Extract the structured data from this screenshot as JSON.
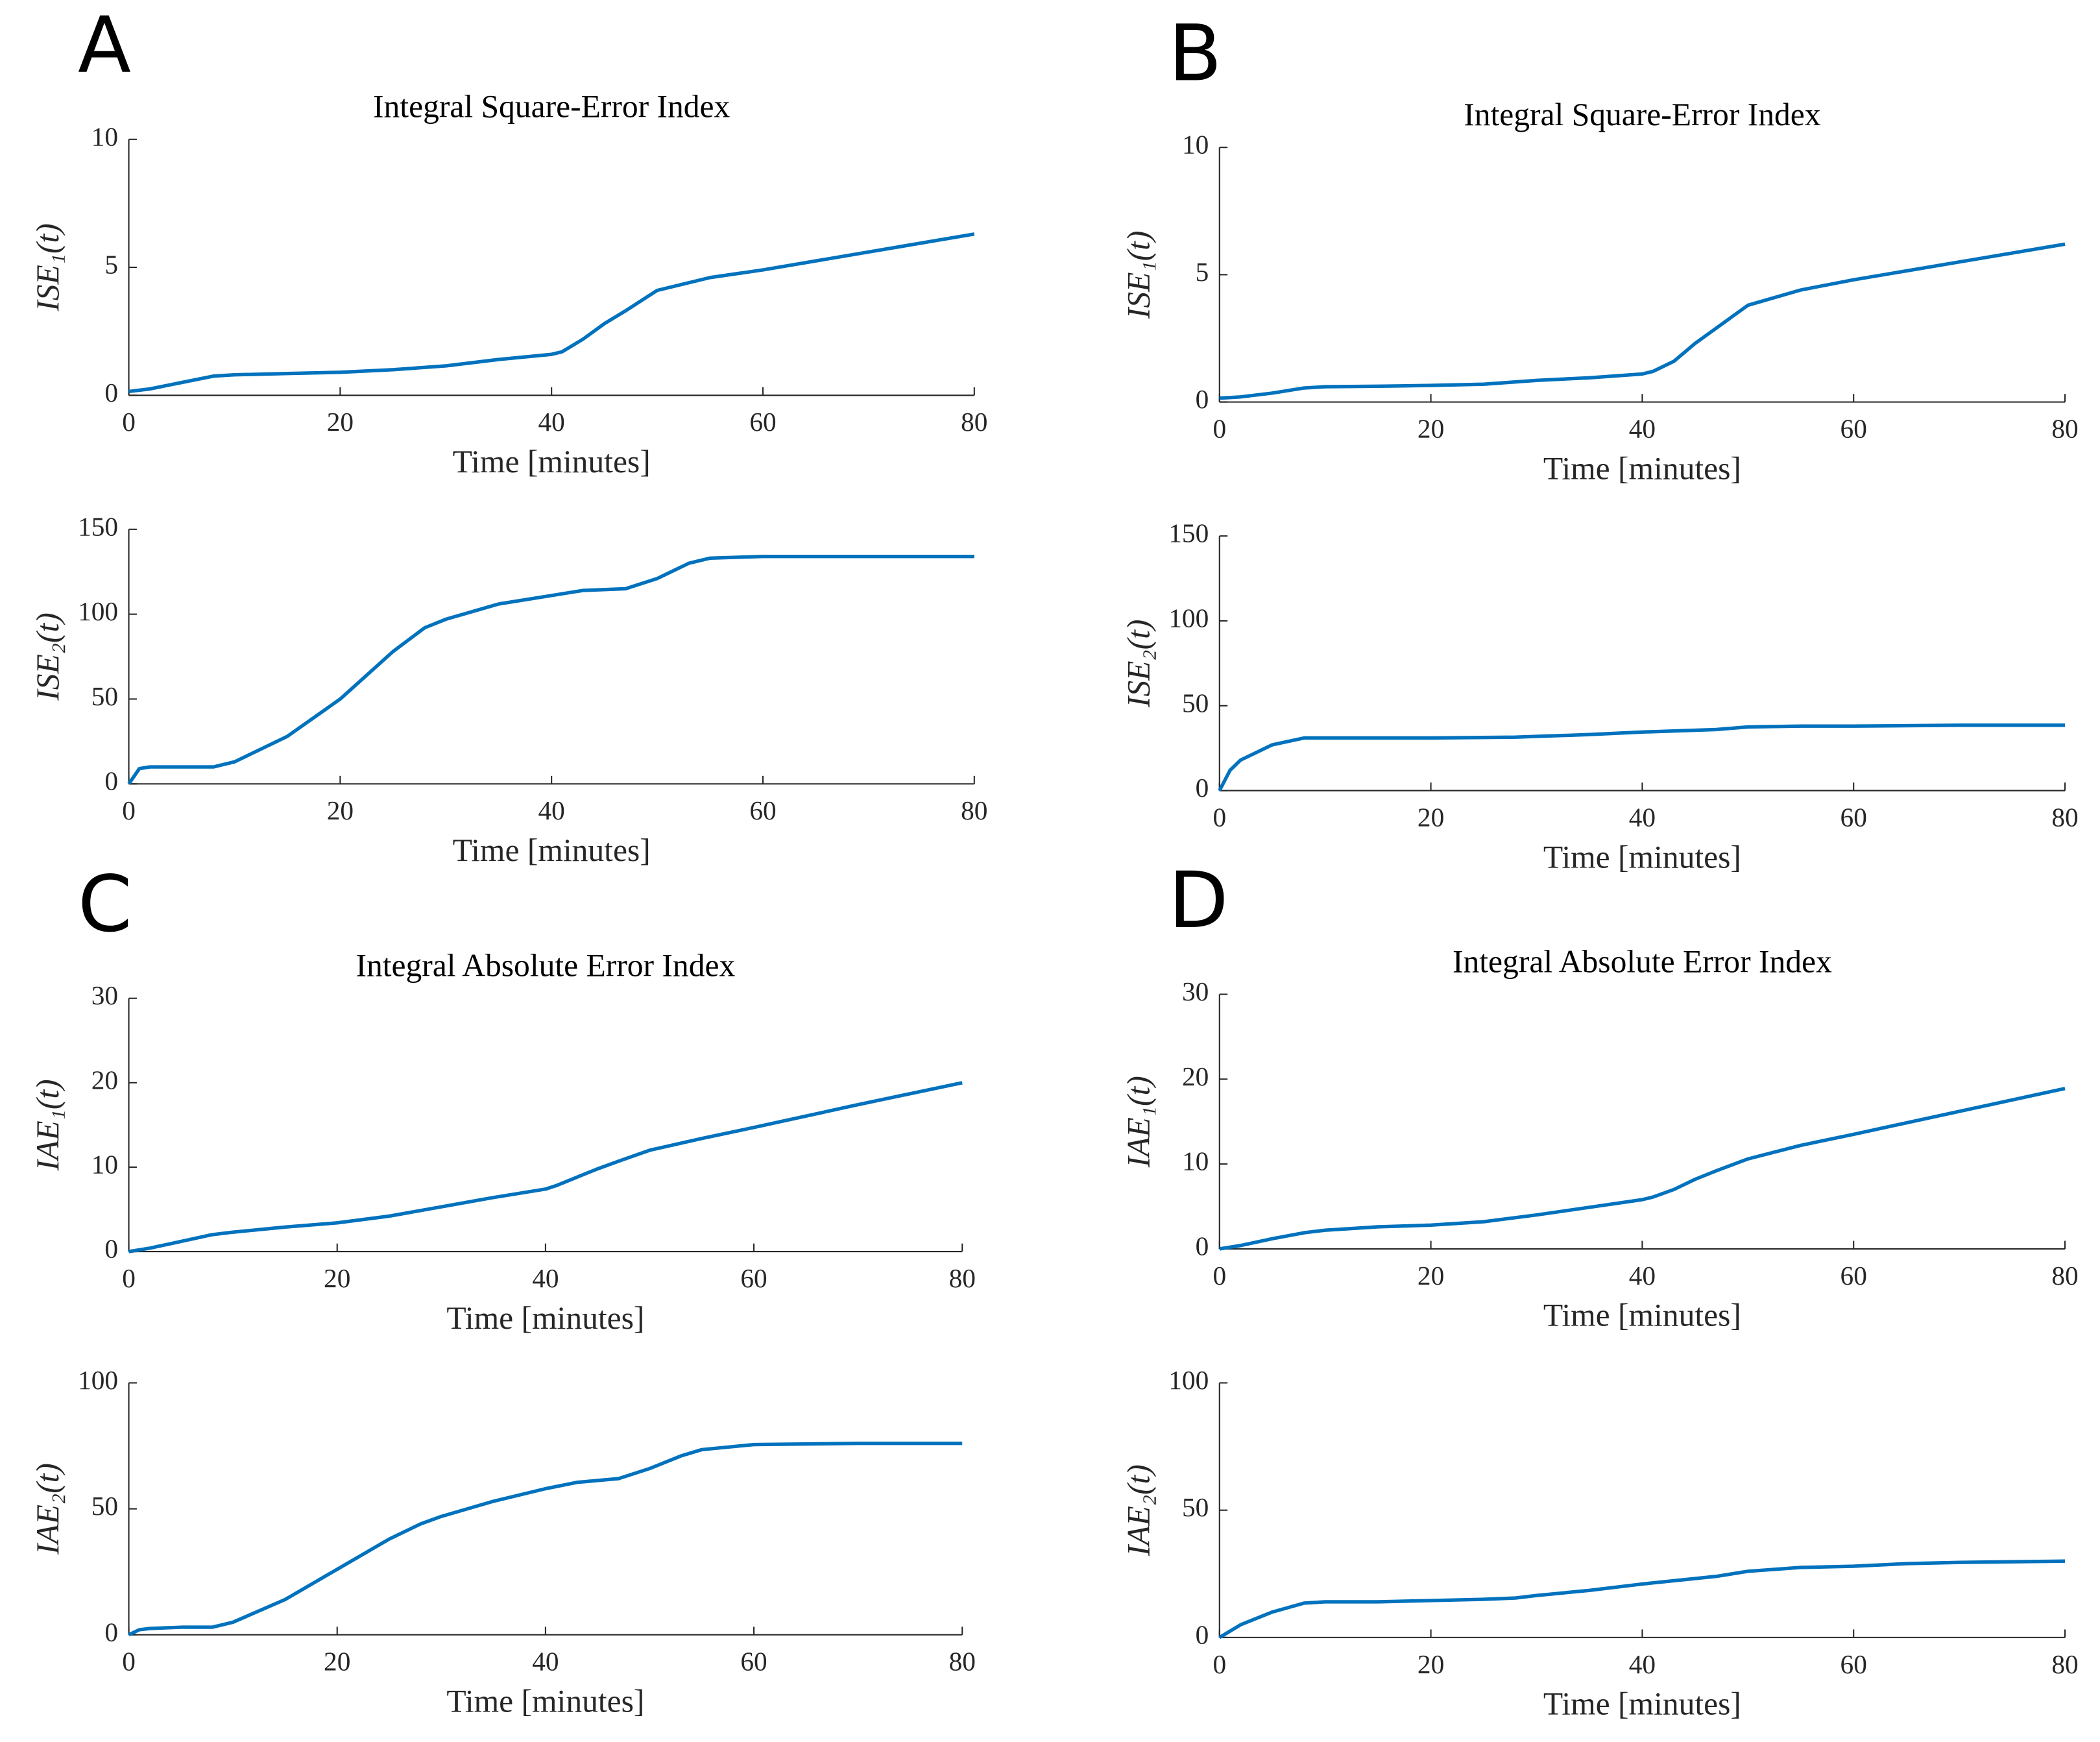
{
  "chart_data": [
    {
      "type": "line",
      "panel": "A",
      "title": "Integral Square-Error Index",
      "xlabel": "Time [minutes]",
      "ylabel": "ISE₁(t)",
      "x": [
        0,
        1,
        2,
        5,
        8,
        10,
        15,
        20,
        25,
        30,
        35,
        40,
        41,
        43,
        45,
        47,
        50,
        55,
        60,
        70,
        80
      ],
      "series": [
        {
          "color": "#0072bd",
          "values": [
            0.15,
            0.2,
            0.25,
            0.5,
            0.75,
            0.8,
            0.85,
            0.9,
            1.0,
            1.15,
            1.4,
            1.6,
            1.7,
            2.2,
            2.8,
            3.3,
            4.1,
            4.6,
            4.9,
            5.6,
            6.3
          ]
        }
      ],
      "xlim": [
        0,
        80
      ],
      "ylim": [
        0,
        10
      ],
      "xticks": [
        0,
        20,
        40,
        60,
        80
      ],
      "yticks": [
        0,
        5,
        10
      ]
    },
    {
      "type": "line",
      "xlabel": "Time [minutes]",
      "ylabel": "ISE₂(t)",
      "x": [
        0,
        1,
        2,
        5,
        8,
        10,
        15,
        20,
        25,
        28,
        30,
        35,
        40,
        43,
        47,
        50,
        53,
        55,
        60,
        70,
        80
      ],
      "series": [
        {
          "color": "#0072bd",
          "values": [
            0,
            9,
            10,
            10,
            10,
            13,
            28,
            50,
            78,
            92,
            97,
            106,
            111,
            114,
            115,
            121,
            130,
            133,
            134,
            134,
            134
          ]
        }
      ],
      "xlim": [
        0,
        80
      ],
      "ylim": [
        0,
        150
      ],
      "xticks": [
        0,
        20,
        40,
        60,
        80
      ],
      "yticks": [
        0,
        50,
        100,
        150
      ]
    },
    {
      "type": "line",
      "panel": "B",
      "title": "Integral Square-Error Index",
      "xlabel": "Time [minutes]",
      "ylabel": "ISE₁(t)",
      "x": [
        0,
        2,
        5,
        8,
        10,
        15,
        20,
        25,
        30,
        35,
        40,
        41,
        43,
        45,
        47,
        50,
        55,
        60,
        70,
        80
      ],
      "series": [
        {
          "color": "#0072bd",
          "values": [
            0.15,
            0.2,
            0.35,
            0.55,
            0.6,
            0.62,
            0.65,
            0.7,
            0.85,
            0.95,
            1.1,
            1.2,
            1.6,
            2.3,
            2.9,
            3.8,
            4.4,
            4.8,
            5.5,
            6.2
          ]
        }
      ],
      "xlim": [
        0,
        80
      ],
      "ylim": [
        0,
        10
      ],
      "xticks": [
        0,
        20,
        40,
        60,
        80
      ],
      "yticks": [
        0,
        5,
        10
      ]
    },
    {
      "type": "line",
      "xlabel": "Time [minutes]",
      "ylabel": "ISE₂(t)",
      "x": [
        0,
        1,
        2,
        5,
        8,
        10,
        20,
        28,
        35,
        40,
        47,
        50,
        55,
        60,
        70,
        80
      ],
      "series": [
        {
          "color": "#0072bd",
          "values": [
            0,
            12,
            18,
            27,
            31,
            31,
            31,
            31.5,
            33,
            34.5,
            36,
            37.5,
            38,
            38,
            38.5,
            38.5
          ]
        }
      ],
      "xlim": [
        0,
        80
      ],
      "ylim": [
        0,
        150
      ],
      "xticks": [
        0,
        20,
        40,
        60,
        80
      ],
      "yticks": [
        0,
        50,
        100,
        150
      ]
    },
    {
      "type": "line",
      "panel": "C",
      "title": "Integral Absolute Error Index",
      "xlabel": "Time [minutes]",
      "ylabel": "IAE₁(t)",
      "x": [
        0,
        2,
        5,
        8,
        10,
        15,
        20,
        25,
        30,
        35,
        40,
        41,
        43,
        45,
        47,
        50,
        55,
        60,
        70,
        80
      ],
      "series": [
        {
          "color": "#0072bd",
          "values": [
            0,
            0.4,
            1.2,
            2,
            2.3,
            2.9,
            3.4,
            4.2,
            5.3,
            6.4,
            7.4,
            7.8,
            8.8,
            9.8,
            10.7,
            12,
            13.4,
            14.7,
            17.4,
            20
          ]
        }
      ],
      "xlim": [
        0,
        80
      ],
      "ylim": [
        0,
        30
      ],
      "xticks": [
        0,
        20,
        40,
        60,
        80
      ],
      "yticks": [
        0,
        10,
        20,
        30
      ]
    },
    {
      "type": "line",
      "xlabel": "Time [minutes]",
      "ylabel": "IAE₂(t)",
      "x": [
        0,
        1,
        2,
        5,
        8,
        10,
        15,
        20,
        25,
        28,
        30,
        35,
        40,
        43,
        47,
        50,
        53,
        55,
        60,
        70,
        80
      ],
      "series": [
        {
          "color": "#0072bd",
          "values": [
            0,
            2,
            2.5,
            3,
            3,
            5,
            14,
            26,
            38,
            44,
            47,
            53,
            58,
            60.5,
            62,
            66,
            71,
            73.5,
            75.5,
            76,
            76
          ]
        }
      ],
      "xlim": [
        0,
        80
      ],
      "ylim": [
        0,
        100
      ],
      "xticks": [
        0,
        20,
        40,
        60,
        80
      ],
      "yticks": [
        0,
        50,
        100
      ]
    },
    {
      "type": "line",
      "panel": "D",
      "title": "Integral Absolute Error Index",
      "xlabel": "Time [minutes]",
      "ylabel": "IAE₁(t)",
      "x": [
        0,
        2,
        5,
        8,
        10,
        15,
        20,
        25,
        30,
        35,
        40,
        41,
        43,
        45,
        47,
        50,
        55,
        60,
        70,
        80
      ],
      "series": [
        {
          "color": "#0072bd",
          "values": [
            0,
            0.4,
            1.2,
            1.9,
            2.2,
            2.6,
            2.8,
            3.2,
            4,
            4.9,
            5.8,
            6.1,
            7,
            8.2,
            9.2,
            10.6,
            12.2,
            13.5,
            16.2,
            18.9
          ]
        }
      ],
      "xlim": [
        0,
        80
      ],
      "ylim": [
        0,
        30
      ],
      "xticks": [
        0,
        20,
        40,
        60,
        80
      ],
      "yticks": [
        0,
        10,
        20,
        30
      ]
    },
    {
      "type": "line",
      "xlabel": "Time [minutes]",
      "ylabel": "IAE₂(t)",
      "x": [
        0,
        2,
        5,
        8,
        10,
        15,
        20,
        25,
        28,
        30,
        35,
        40,
        47,
        50,
        55,
        60,
        65,
        70,
        80
      ],
      "series": [
        {
          "color": "#0072bd",
          "values": [
            0,
            5,
            10,
            13.5,
            14,
            14,
            14.5,
            15,
            15.5,
            16.5,
            18.5,
            21,
            24,
            26,
            27.5,
            28,
            29,
            29.5,
            30
          ]
        }
      ],
      "xlim": [
        0,
        80
      ],
      "ylim": [
        0,
        100
      ],
      "xticks": [
        0,
        20,
        40,
        60,
        80
      ],
      "yticks": [
        0,
        50,
        100
      ]
    }
  ]
}
